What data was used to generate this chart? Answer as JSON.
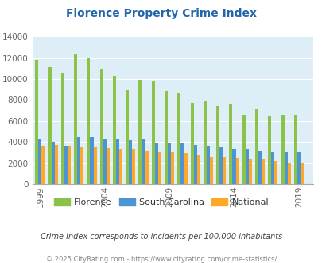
{
  "title": "Florence Property Crime Index",
  "title_color": "#2266aa",
  "years": [
    1999,
    2000,
    2001,
    2002,
    2003,
    2004,
    2005,
    2006,
    2007,
    2008,
    2009,
    2010,
    2011,
    2012,
    2013,
    2014,
    2015,
    2016,
    2017,
    2018,
    2019
  ],
  "florence": [
    11800,
    11100,
    10550,
    12350,
    11950,
    10900,
    10300,
    8950,
    9850,
    9800,
    8900,
    8600,
    7750,
    7850,
    7450,
    7600,
    6600,
    7100,
    6450,
    6600,
    6600
  ],
  "south_carolina": [
    4350,
    4050,
    3600,
    4500,
    4500,
    4300,
    4250,
    4200,
    4250,
    3900,
    3900,
    3850,
    3750,
    3600,
    3450,
    3350,
    3300,
    3150,
    3050,
    3000,
    3000
  ],
  "national": [
    3600,
    3700,
    3600,
    3550,
    3450,
    3400,
    3300,
    3300,
    3200,
    3050,
    3050,
    2950,
    2700,
    2600,
    2550,
    2500,
    2450,
    2400,
    2200,
    2050,
    2050
  ],
  "florence_color": "#8bc34a",
  "sc_color": "#4d94d4",
  "national_color": "#ffa726",
  "plot_bg": "#ddeef6",
  "ylim": [
    0,
    14000
  ],
  "yticks": [
    0,
    2000,
    4000,
    6000,
    8000,
    10000,
    12000,
    14000
  ],
  "xtick_labels": [
    "1999",
    "2004",
    "2009",
    "2014",
    "2019"
  ],
  "xtick_years": [
    1999,
    2004,
    2009,
    2014,
    2019
  ],
  "subtitle": "Crime Index corresponds to incidents per 100,000 inhabitants",
  "subtitle_color": "#444444",
  "footer": "© 2025 CityRating.com - https://www.cityrating.com/crime-statistics/",
  "footer_color": "#888888",
  "legend_labels": [
    "Florence",
    "South Carolina",
    "National"
  ],
  "bar_width": 0.25
}
